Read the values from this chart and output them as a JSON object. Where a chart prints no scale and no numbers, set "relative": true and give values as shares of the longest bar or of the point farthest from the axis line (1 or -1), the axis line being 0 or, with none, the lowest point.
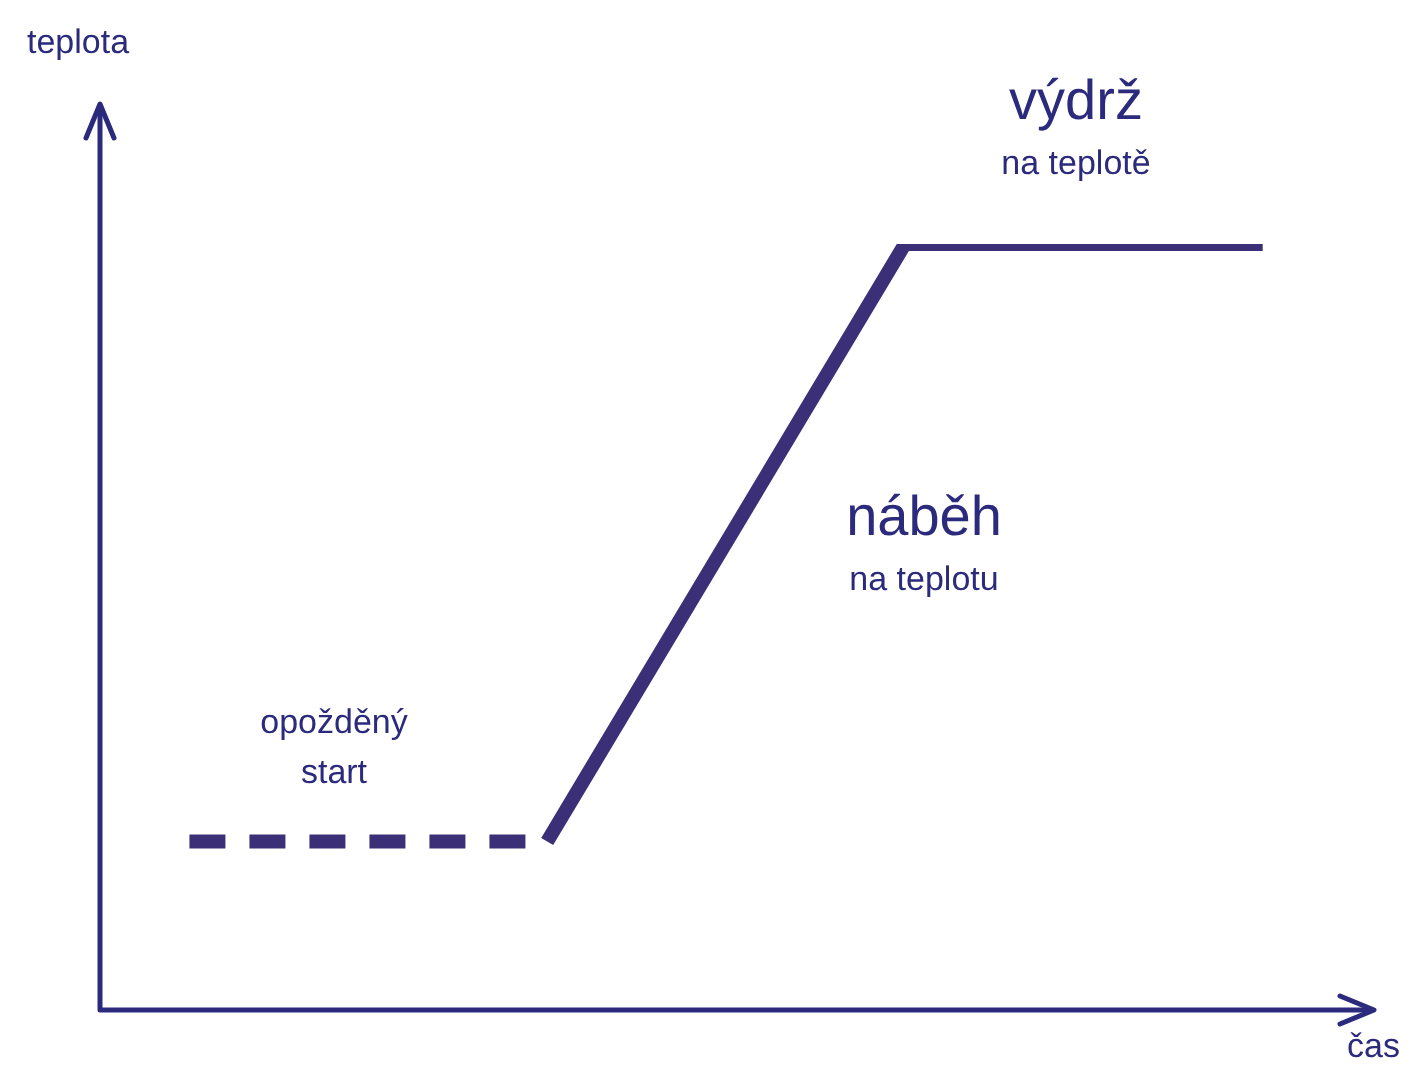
{
  "chart_data": {
    "type": "line",
    "relative": true,
    "xlabel": "čas",
    "marker": "none",
    "categories": [
      null,
      null,
      null,
      null
    ],
    "series": [
      {
        "color": "#3b3078",
        "line_style": "dashed",
        "values": [
          0.22,
          0.22,
          null,
          null
        ]
      },
      {
        "color": "#3b3078",
        "line_style": "solid",
        "values": [
          null,
          0.22,
          1,
          1
        ]
      }
    ],
    "annotations": [
      "opožděný\nstart",
      "náběh\nna teplotu",
      "výdrž\nna teplotě",
      "teplota"
    ]
  }
}
